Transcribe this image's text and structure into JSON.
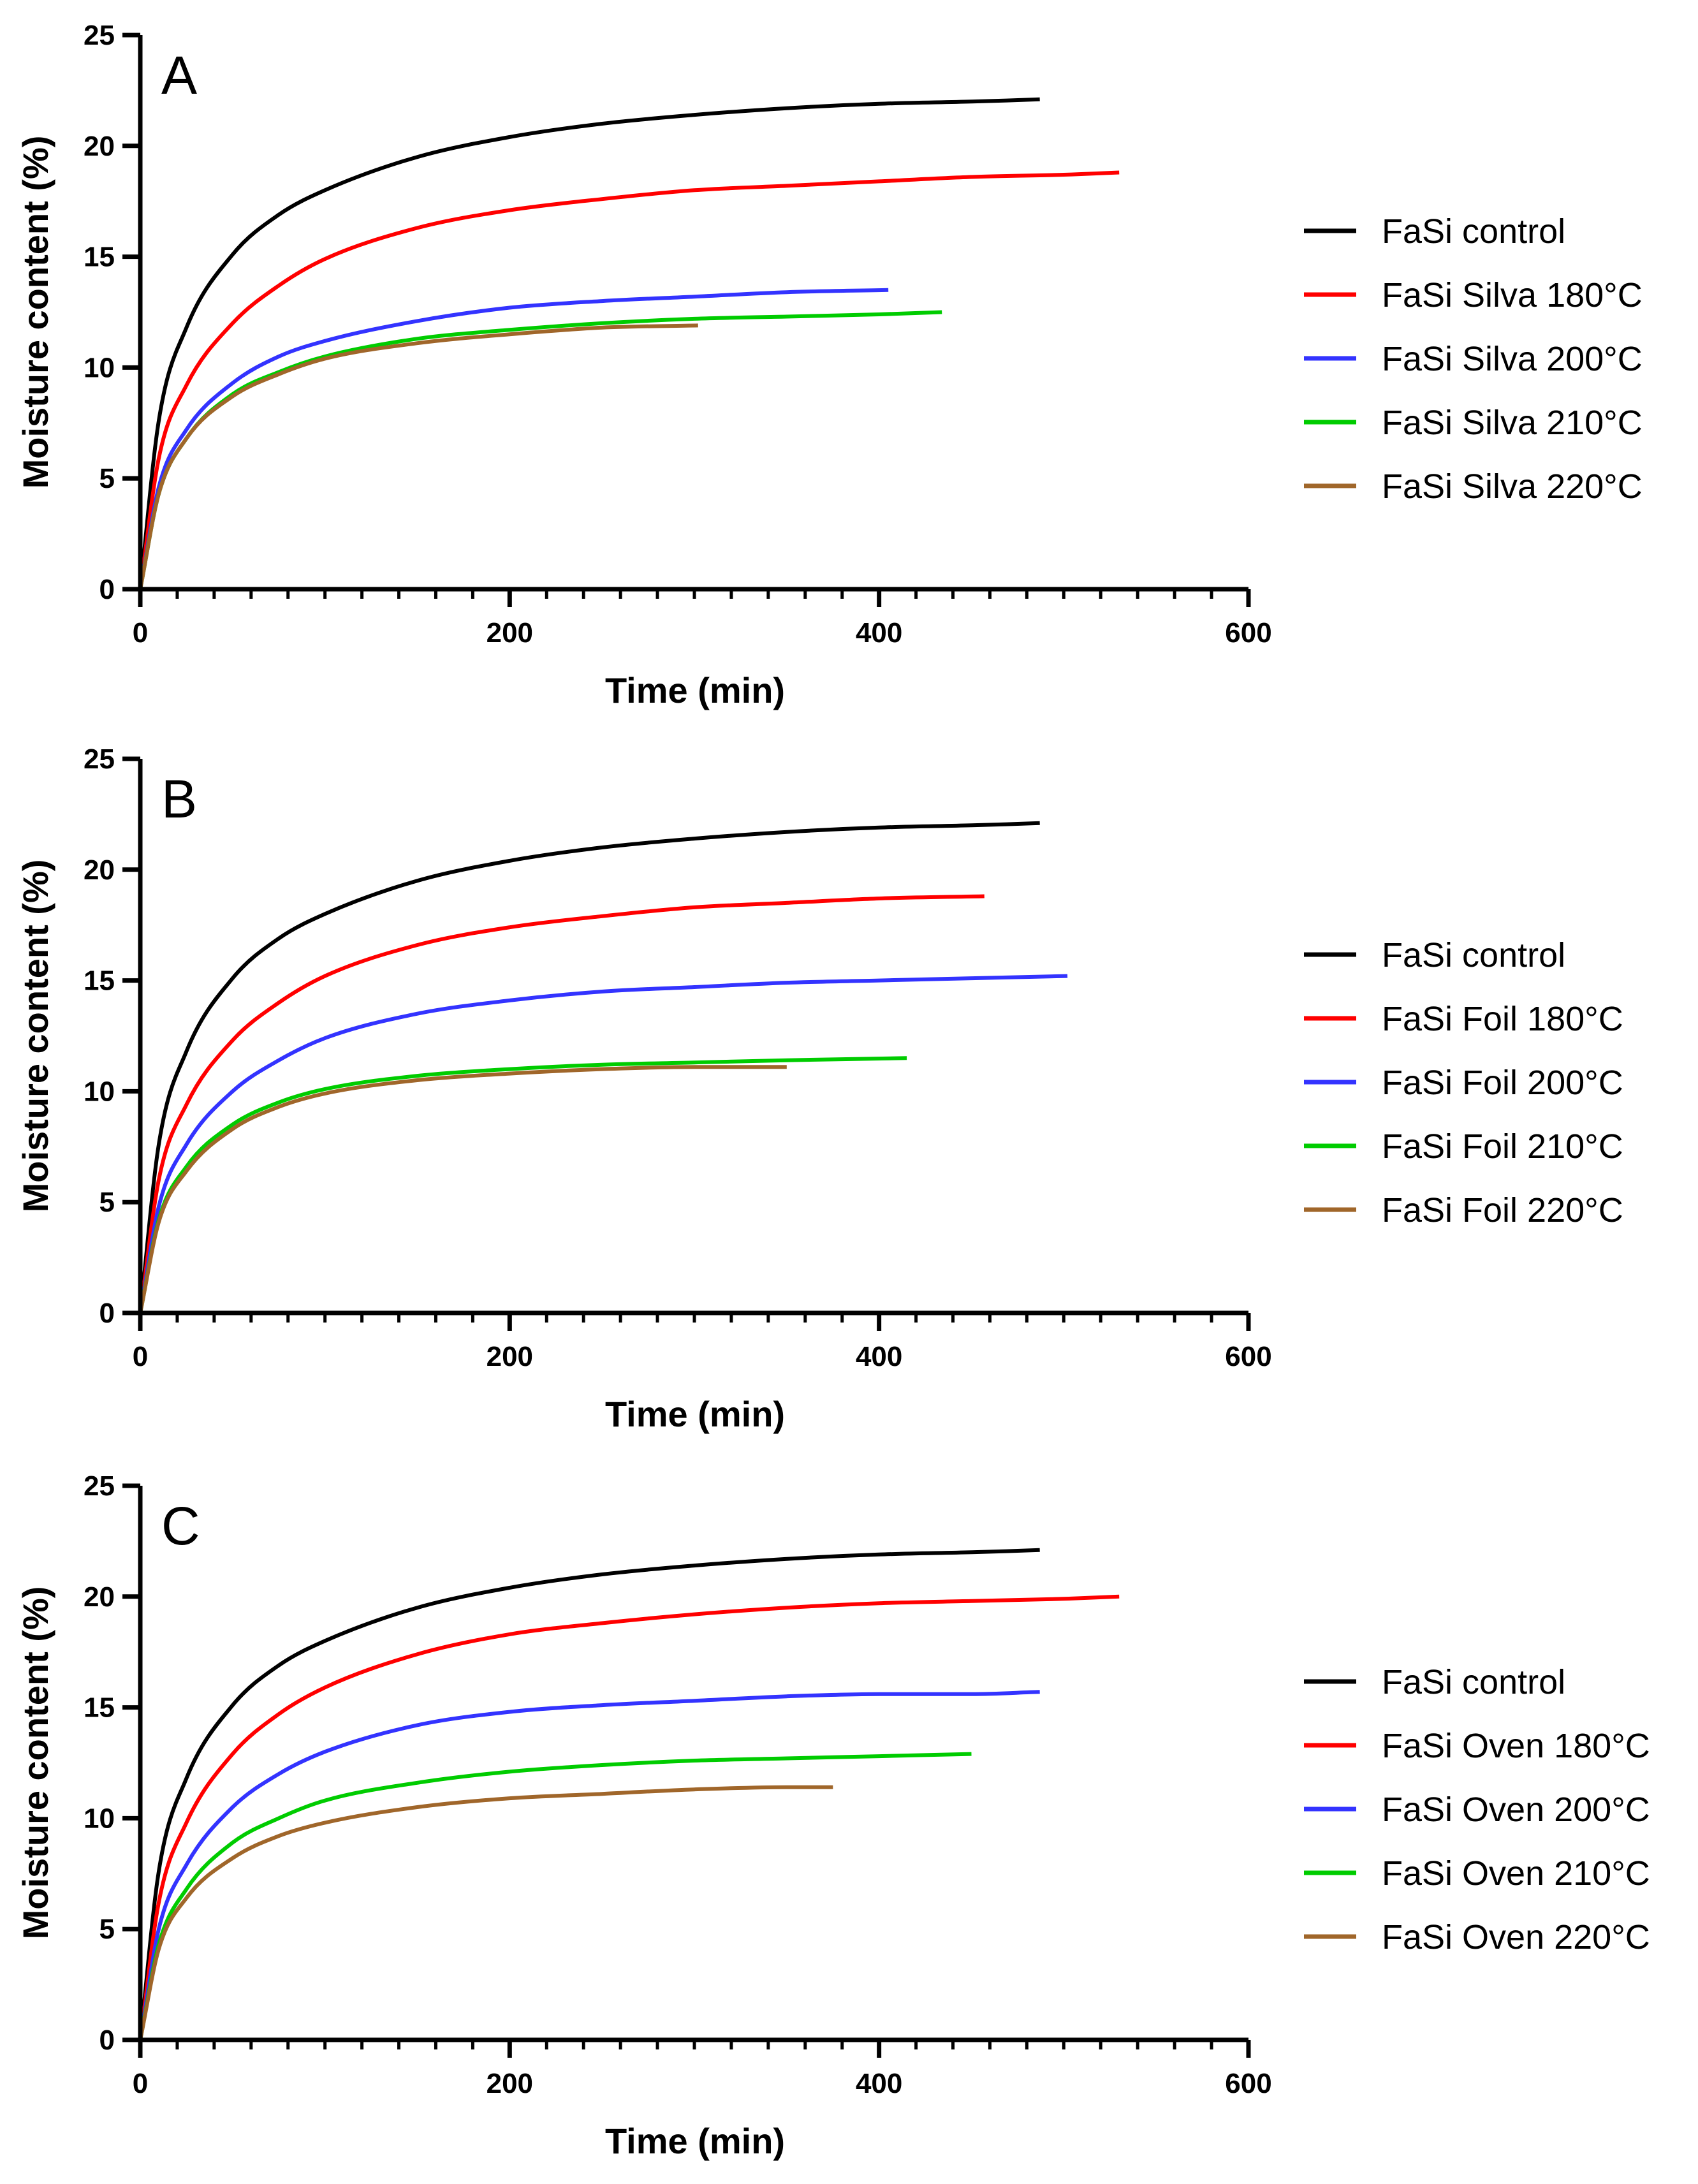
{
  "chart_data": [
    {
      "type": "line",
      "panel_label": "A",
      "xlabel": "Time (min)",
      "ylabel": "Moisture content (%)",
      "xlim": [
        0,
        600
      ],
      "ylim": [
        0,
        25
      ],
      "x_ticks": [
        0,
        200,
        400,
        600
      ],
      "y_ticks": [
        0,
        5,
        10,
        15,
        20,
        25
      ],
      "x_tick_labels": [
        "0",
        "200",
        "400",
        "600"
      ],
      "y_tick_labels": [
        "0",
        "5",
        "10",
        "15",
        "20",
        "25"
      ],
      "grid": false,
      "legend_position": "right",
      "series": [
        {
          "name": "FaSi control",
          "color": "#000000",
          "x": [
            0,
            10,
            25,
            50,
            75,
            100,
            150,
            200,
            250,
            300,
            350,
            400,
            450,
            487
          ],
          "y": [
            0,
            7.6,
            11.8,
            15.1,
            16.9,
            18.0,
            19.5,
            20.4,
            21.0,
            21.4,
            21.7,
            21.9,
            22.0,
            22.1
          ]
        },
        {
          "name": "FaSi Silva 180°C",
          "color": "#ff0000",
          "x": [
            0,
            10,
            25,
            50,
            75,
            100,
            150,
            200,
            250,
            300,
            350,
            400,
            450,
            500,
            530
          ],
          "y": [
            0,
            5.9,
            9.2,
            12.0,
            13.7,
            14.9,
            16.3,
            17.1,
            17.6,
            18.0,
            18.2,
            18.4,
            18.6,
            18.7,
            18.8
          ]
        },
        {
          "name": "FaSi Silva 200°C",
          "color": "#3333ff",
          "x": [
            0,
            10,
            25,
            50,
            75,
            100,
            150,
            200,
            250,
            300,
            350,
            405
          ],
          "y": [
            0,
            4.6,
            7.2,
            9.3,
            10.5,
            11.2,
            12.1,
            12.7,
            13.0,
            13.2,
            13.4,
            13.5
          ]
        },
        {
          "name": "FaSi Silva 210°C",
          "color": "#00cc00",
          "x": [
            0,
            10,
            25,
            50,
            75,
            100,
            150,
            200,
            250,
            300,
            350,
            400,
            434
          ],
          "y": [
            0,
            4.3,
            6.8,
            8.8,
            9.8,
            10.5,
            11.3,
            11.7,
            12.0,
            12.2,
            12.3,
            12.4,
            12.5
          ]
        },
        {
          "name": "FaSi Silva 220°C",
          "color": "#a0662a",
          "x": [
            0,
            10,
            25,
            50,
            75,
            100,
            150,
            200,
            250,
            302
          ],
          "y": [
            0,
            4.3,
            6.8,
            8.7,
            9.7,
            10.4,
            11.1,
            11.5,
            11.8,
            11.9
          ]
        }
      ]
    },
    {
      "type": "line",
      "panel_label": "B",
      "xlabel": "Time (min)",
      "ylabel": "Moisture content (%)",
      "xlim": [
        0,
        600
      ],
      "ylim": [
        0,
        25
      ],
      "x_ticks": [
        0,
        200,
        400,
        600
      ],
      "y_ticks": [
        0,
        5,
        10,
        15,
        20,
        25
      ],
      "x_tick_labels": [
        "0",
        "200",
        "400",
        "600"
      ],
      "y_tick_labels": [
        "0",
        "5",
        "10",
        "15",
        "20",
        "25"
      ],
      "grid": false,
      "legend_position": "right",
      "series": [
        {
          "name": "FaSi control",
          "color": "#000000",
          "x": [
            0,
            10,
            25,
            50,
            75,
            100,
            150,
            200,
            250,
            300,
            350,
            400,
            450,
            487
          ],
          "y": [
            0,
            7.6,
            11.8,
            15.1,
            16.9,
            18.0,
            19.5,
            20.4,
            21.0,
            21.4,
            21.7,
            21.9,
            22.0,
            22.1
          ]
        },
        {
          "name": "FaSi Foil 180°C",
          "color": "#ff0000",
          "x": [
            0,
            10,
            25,
            50,
            75,
            100,
            150,
            200,
            250,
            300,
            350,
            400,
            457
          ],
          "y": [
            0,
            6.0,
            9.4,
            12.3,
            14.0,
            15.2,
            16.6,
            17.4,
            17.9,
            18.3,
            18.5,
            18.7,
            18.8
          ]
        },
        {
          "name": "FaSi Foil 200°C",
          "color": "#3333ff",
          "x": [
            0,
            10,
            25,
            50,
            75,
            100,
            150,
            200,
            250,
            300,
            350,
            400,
            450,
            502
          ],
          "y": [
            0,
            4.8,
            7.6,
            10.0,
            11.4,
            12.4,
            13.5,
            14.1,
            14.5,
            14.7,
            14.9,
            15.0,
            15.1,
            15.2
          ]
        },
        {
          "name": "FaSi Foil 210°C",
          "color": "#00cc00",
          "x": [
            0,
            10,
            25,
            50,
            75,
            100,
            150,
            200,
            250,
            300,
            350,
            415
          ],
          "y": [
            0,
            4.2,
            6.6,
            8.5,
            9.5,
            10.1,
            10.7,
            11.0,
            11.2,
            11.3,
            11.4,
            11.5
          ]
        },
        {
          "name": "FaSi Foil 220°C",
          "color": "#a0662a",
          "x": [
            0,
            10,
            25,
            50,
            75,
            100,
            150,
            200,
            250,
            300,
            350
          ],
          "y": [
            0,
            4.1,
            6.4,
            8.3,
            9.3,
            9.9,
            10.5,
            10.8,
            11.0,
            11.1,
            11.1
          ]
        }
      ]
    },
    {
      "type": "line",
      "panel_label": "C",
      "xlabel": "Time (min)",
      "ylabel": "Moisture content (%)",
      "xlim": [
        0,
        600
      ],
      "ylim": [
        0,
        25
      ],
      "x_ticks": [
        0,
        200,
        400,
        600
      ],
      "y_ticks": [
        0,
        5,
        10,
        15,
        20,
        25
      ],
      "x_tick_labels": [
        "0",
        "200",
        "400",
        "600"
      ],
      "y_tick_labels": [
        "0",
        "5",
        "10",
        "15",
        "20",
        "25"
      ],
      "grid": false,
      "legend_position": "right",
      "series": [
        {
          "name": "FaSi control",
          "color": "#000000",
          "x": [
            0,
            10,
            25,
            50,
            75,
            100,
            150,
            200,
            250,
            300,
            350,
            400,
            450,
            487
          ],
          "y": [
            0,
            7.6,
            11.8,
            15.1,
            16.9,
            18.0,
            19.5,
            20.4,
            21.0,
            21.4,
            21.7,
            21.9,
            22.0,
            22.1
          ]
        },
        {
          "name": "FaSi Oven 180°C",
          "color": "#ff0000",
          "x": [
            0,
            10,
            25,
            50,
            75,
            100,
            150,
            200,
            250,
            300,
            350,
            400,
            450,
            500,
            530
          ],
          "y": [
            0,
            6.2,
            9.8,
            12.9,
            14.7,
            15.9,
            17.4,
            18.3,
            18.8,
            19.2,
            19.5,
            19.7,
            19.8,
            19.9,
            20.0
          ]
        },
        {
          "name": "FaSi Oven 200°C",
          "color": "#3333ff",
          "x": [
            0,
            10,
            25,
            50,
            75,
            100,
            150,
            200,
            250,
            300,
            350,
            400,
            450,
            487
          ],
          "y": [
            0,
            5.0,
            7.9,
            10.5,
            12.0,
            13.0,
            14.2,
            14.8,
            15.1,
            15.3,
            15.5,
            15.6,
            15.6,
            15.7
          ]
        },
        {
          "name": "FaSi Oven 210°C",
          "color": "#00cc00",
          "x": [
            0,
            10,
            25,
            50,
            75,
            100,
            150,
            200,
            250,
            300,
            350,
            400,
            450
          ],
          "y": [
            0,
            4.3,
            6.8,
            8.9,
            10.0,
            10.8,
            11.6,
            12.1,
            12.4,
            12.6,
            12.7,
            12.8,
            12.9
          ]
        },
        {
          "name": "FaSi Oven 220°C",
          "color": "#a0662a",
          "x": [
            0,
            10,
            25,
            50,
            75,
            100,
            150,
            200,
            250,
            300,
            350,
            375
          ],
          "y": [
            0,
            4.1,
            6.4,
            8.2,
            9.2,
            9.8,
            10.5,
            10.9,
            11.1,
            11.3,
            11.4,
            11.4
          ]
        }
      ]
    }
  ]
}
